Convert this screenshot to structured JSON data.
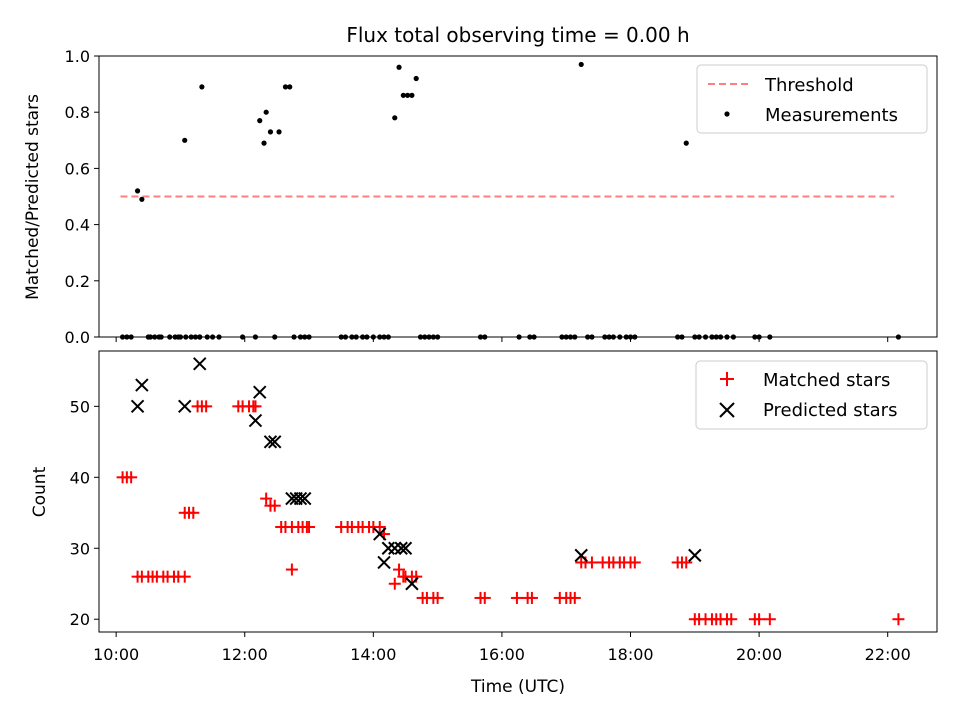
{
  "chart_data": [
    {
      "type": "scatter",
      "title": "Flux total observing time = 0.00 h",
      "xlabel": "",
      "ylabel": "Matched/Predicted stars",
      "xlim": [
        "09:44",
        "22:46"
      ],
      "ylim": [
        0,
        1.0
      ],
      "yticks": [
        "0.0",
        "0.2",
        "0.4",
        "0.6",
        "0.8",
        "1.0"
      ],
      "legend_position": "top-right",
      "threshold": {
        "name": "Threshold",
        "value": 0.5,
        "x_start": "10:04",
        "x_end": "22:06",
        "color": "#ff7f7f",
        "style": "dashed"
      },
      "series": [
        {
          "name": "Measurements",
          "color": "#000000",
          "x": [
            "10:20",
            "10:24",
            "10:06",
            "10:10",
            "10:14",
            "10:30",
            "10:32",
            "10:36",
            "10:40",
            "10:42",
            "10:50",
            "10:55",
            "10:58",
            "11:00",
            "11:05",
            "11:10",
            "11:14",
            "11:18",
            "11:20",
            "11:25",
            "11:30",
            "11:36",
            "11:04",
            "11:18",
            "11:58",
            "12:10",
            "12:14",
            "12:18",
            "12:20",
            "12:24",
            "12:28",
            "12:32",
            "12:38",
            "12:42",
            "12:46",
            "12:52",
            "12:56",
            "13:00",
            "13:30",
            "13:34",
            "13:40",
            "13:44",
            "13:50",
            "13:54",
            "14:00",
            "14:06",
            "14:10",
            "14:14",
            "14:20",
            "14:24",
            "14:28",
            "14:32",
            "14:36",
            "14:40",
            "14:44",
            "14:48",
            "14:52",
            "14:56",
            "15:00",
            "15:40",
            "15:44",
            "16:16",
            "16:26",
            "16:30",
            "16:56",
            "17:00",
            "17:04",
            "17:08",
            "17:14",
            "17:20",
            "17:24",
            "17:36",
            "17:40",
            "17:44",
            "17:50",
            "17:56",
            "18:00",
            "18:04",
            "18:44",
            "18:48",
            "18:52",
            "19:00",
            "19:04",
            "19:10",
            "19:16",
            "19:20",
            "19:24",
            "19:30",
            "19:36",
            "19:56",
            "20:00",
            "20:10",
            "22:10"
          ],
          "y": [
            0.52,
            0.49,
            0.0,
            0.0,
            0.0,
            0.0,
            0.0,
            0.0,
            0.0,
            0.0,
            0.0,
            0.0,
            0.0,
            0.0,
            0.0,
            0.0,
            0.0,
            0.0,
            0.89,
            0.0,
            0.0,
            0.0,
            0.7,
            0.0,
            0.0,
            0.0,
            0.77,
            0.69,
            0.8,
            0.73,
            0.0,
            0.73,
            0.89,
            0.89,
            0.0,
            0.0,
            0.0,
            0.0,
            0.0,
            0.0,
            0.0,
            0.0,
            0.0,
            0.0,
            0.0,
            0.0,
            0.0,
            0.0,
            0.78,
            0.96,
            0.86,
            0.86,
            0.86,
            0.92,
            0.0,
            0.0,
            0.0,
            0.0,
            0.0,
            0.0,
            0.0,
            0.0,
            0.0,
            0.0,
            0.0,
            0.0,
            0.0,
            0.0,
            0.97,
            0.0,
            0.0,
            0.0,
            0.0,
            0.0,
            0.0,
            0.0,
            0.0,
            0.0,
            0.0,
            0.0,
            0.69,
            0.0,
            0.0,
            0.0,
            0.0,
            0.0,
            0.0,
            0.0,
            0.0,
            0.0,
            0.0,
            0.0,
            0.0
          ]
        }
      ]
    },
    {
      "type": "scatter",
      "title": "",
      "xlabel": "Time (UTC)",
      "ylabel": "Count",
      "xlim": [
        "09:44",
        "22:46"
      ],
      "ylim": [
        18.2,
        57.8
      ],
      "yticks": [
        "20",
        "30",
        "40",
        "50"
      ],
      "xticks": [
        "10:00",
        "12:00",
        "14:00",
        "16:00",
        "18:00",
        "20:00",
        "22:00"
      ],
      "legend_position": "top-right",
      "series": [
        {
          "name": "Matched stars",
          "color": "#ff0000",
          "marker": "plus",
          "x": [
            "10:06",
            "10:10",
            "10:14",
            "10:20",
            "10:24",
            "10:30",
            "10:34",
            "10:38",
            "10:44",
            "10:48",
            "10:54",
            "10:58",
            "11:04",
            "11:04",
            "11:08",
            "11:12",
            "11:16",
            "11:20",
            "11:24",
            "11:54",
            "11:58",
            "12:04",
            "12:08",
            "12:10",
            "12:20",
            "12:24",
            "12:28",
            "12:34",
            "12:38",
            "12:44",
            "12:50",
            "12:54",
            "12:58",
            "13:00",
            "12:44",
            "13:30",
            "13:36",
            "13:40",
            "13:46",
            "13:50",
            "13:56",
            "14:00",
            "14:06",
            "14:10",
            "14:20",
            "14:24",
            "14:28",
            "14:30",
            "14:36",
            "14:40",
            "14:46",
            "14:50",
            "14:56",
            "15:00",
            "15:40",
            "15:44",
            "16:14",
            "16:24",
            "16:28",
            "16:54",
            "17:00",
            "17:04",
            "17:08",
            "17:14",
            "17:18",
            "17:24",
            "17:34",
            "17:40",
            "17:44",
            "17:50",
            "17:54",
            "18:00",
            "18:04",
            "18:44",
            "18:48",
            "18:52",
            "19:00",
            "19:04",
            "19:10",
            "19:16",
            "19:20",
            "19:24",
            "19:30",
            "19:34",
            "19:56",
            "20:00",
            "20:10",
            "22:10"
          ],
          "y": [
            40,
            40,
            40,
            26,
            26,
            26,
            26,
            26,
            26,
            26,
            26,
            26,
            26,
            35,
            35,
            35,
            50,
            50,
            50,
            50,
            50,
            50,
            50,
            50,
            37,
            36,
            36,
            33,
            33,
            33,
            33,
            33,
            33,
            33,
            27,
            33,
            33,
            33,
            33,
            33,
            33,
            33,
            33,
            32,
            25,
            27,
            26,
            26,
            26,
            26,
            23,
            23,
            23,
            23,
            23,
            23,
            23,
            23,
            23,
            23,
            23,
            23,
            23,
            28,
            28,
            28,
            28,
            28,
            28,
            28,
            28,
            28,
            28,
            28,
            28,
            28,
            20,
            20,
            20,
            20,
            20,
            20,
            20,
            20,
            20,
            20,
            20,
            20
          ]
        },
        {
          "name": "Predicted stars",
          "color": "#000000",
          "marker": "x",
          "x": [
            "10:20",
            "10:24",
            "11:04",
            "11:18",
            "12:10",
            "12:14",
            "12:24",
            "12:28",
            "12:44",
            "12:48",
            "12:52",
            "12:56",
            "14:06",
            "14:10",
            "14:14",
            "14:20",
            "14:26",
            "14:30",
            "14:36",
            "17:14",
            "19:00"
          ],
          "y": [
            50,
            53,
            50,
            56,
            48,
            52,
            45,
            45,
            37,
            37,
            37,
            37,
            32,
            28,
            30,
            30,
            30,
            30,
            25,
            29,
            29
          ]
        }
      ]
    }
  ]
}
